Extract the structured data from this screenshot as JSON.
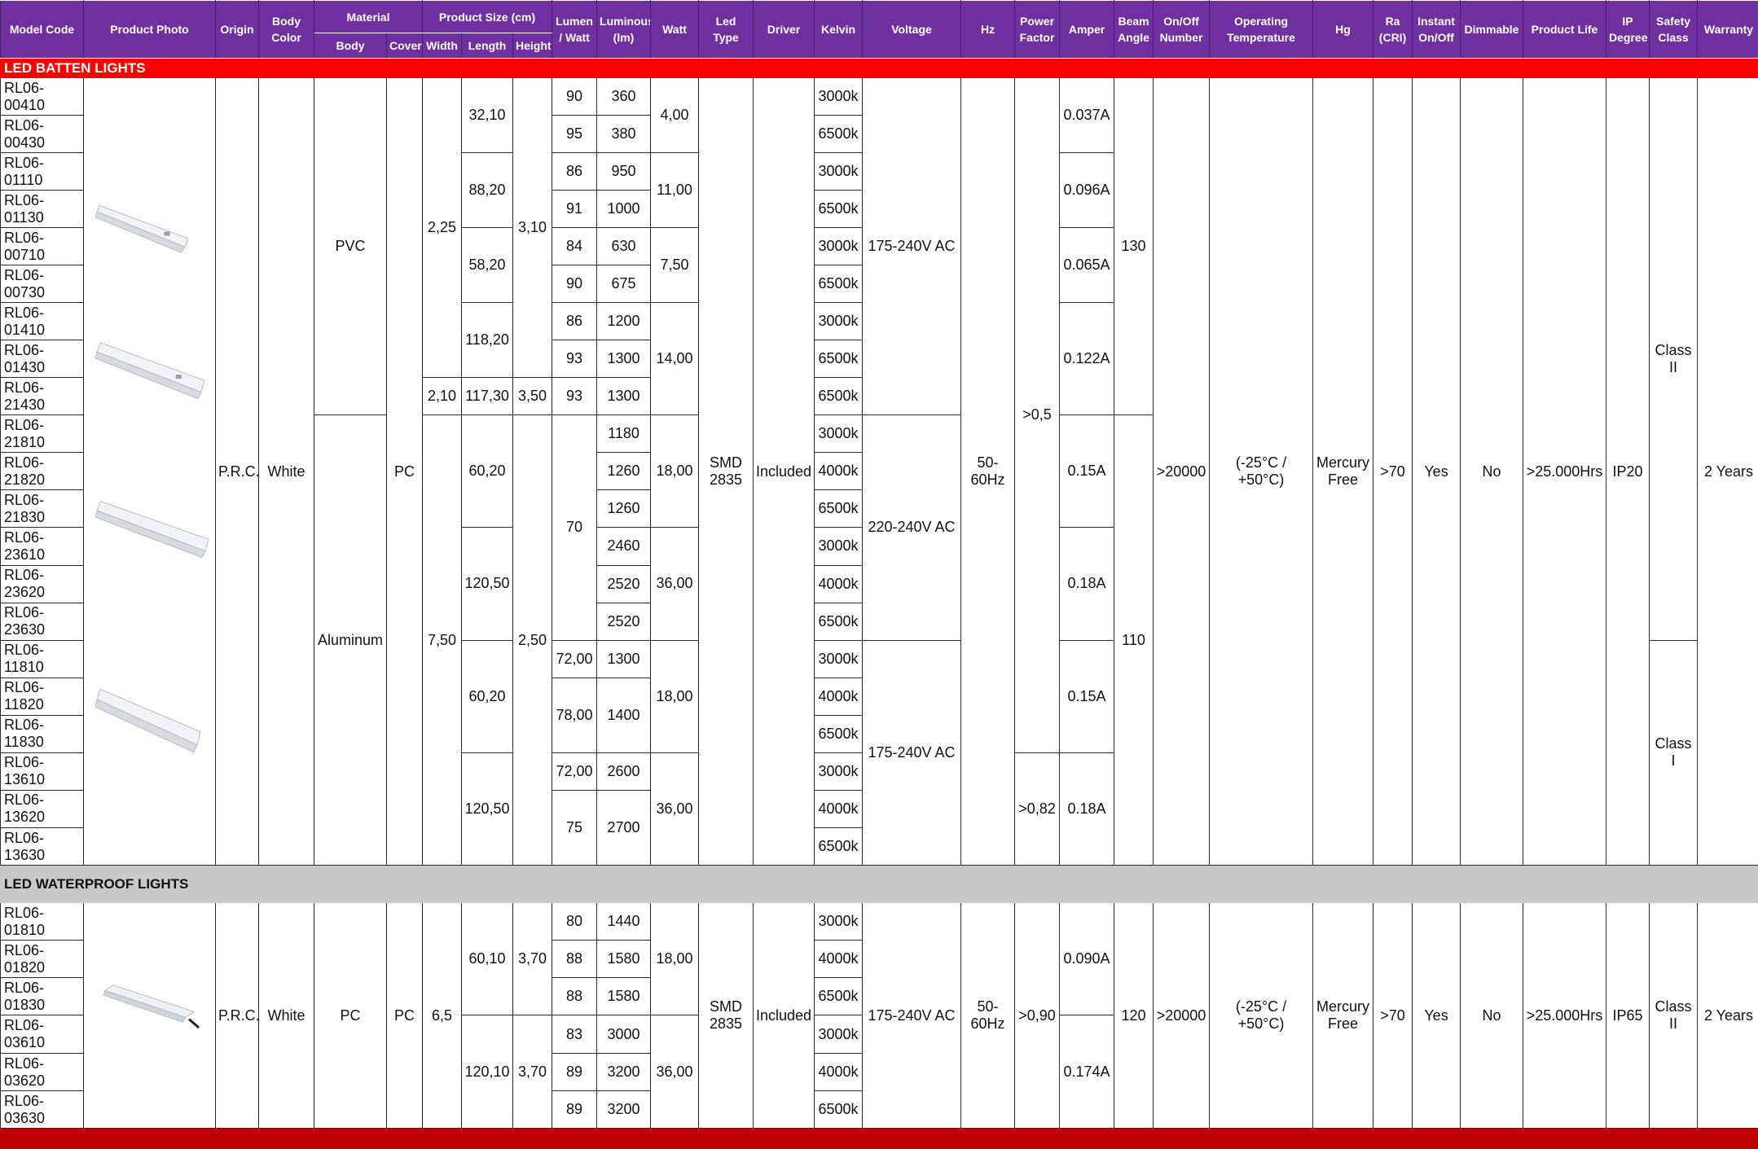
{
  "headers": {
    "model_code": "Model Code",
    "product_photo": "Product Photo",
    "origin": "Origin",
    "body_color": "Body Color",
    "material": "Material",
    "material_body": "Body",
    "material_cover": "Cover",
    "product_size": "Product Size (cm)",
    "width": "Width",
    "length": "Length",
    "height": "Height",
    "lumen_watt": "Lumen / Watt",
    "luminous": "Luminous (lm)",
    "watt": "Watt",
    "led_type": "Led Type",
    "driver": "Driver",
    "kelvin": "Kelvin",
    "voltage": "Voltage",
    "hz": "Hz",
    "power_factor": "Power Factor",
    "amper": "Amper",
    "beam_angle": "Beam Angle",
    "onoff": "On/Off Number",
    "op_temp": "Operating Temperature",
    "hg": "Hg",
    "ra": "Ra (CRI)",
    "instant": "Instant On/Off",
    "dimmable": "Dimmable",
    "life": "Product Life",
    "ip": "IP Degree",
    "safety": "Safety Class",
    "warranty": "Warranty"
  },
  "sections": {
    "batten": "LED BATTEN LIGHTS",
    "waterproof": "LED WATERPROOF LIGHTS"
  },
  "photo_icons": [
    "batten-light-icon",
    "batten-light-icon",
    "flat-batten-light-icon",
    "flat-batten-light-icon",
    "waterproof-light-icon"
  ],
  "batten": {
    "codes": [
      "RL06-00410",
      "RL06-00430",
      "RL06-01110",
      "RL06-01130",
      "RL06-00710",
      "RL06-00730",
      "RL06-01410",
      "RL06-01430",
      "RL06-21430",
      "RL06-21810",
      "RL06-21820",
      "RL06-21830",
      "RL06-23610",
      "RL06-23620",
      "RL06-23630",
      "RL06-11810",
      "RL06-11820",
      "RL06-11830",
      "RL06-13610",
      "RL06-13620",
      "RL06-13630"
    ],
    "kelvin": [
      "3000k",
      "6500k",
      "3000k",
      "6500k",
      "3000k",
      "6500k",
      "3000k",
      "6500k",
      "6500k",
      "3000k",
      "4000k",
      "6500k",
      "3000k",
      "4000k",
      "6500k",
      "3000k",
      "4000k",
      "6500k",
      "3000k",
      "4000k",
      "6500k"
    ],
    "luminous": [
      "360",
      "380",
      "950",
      "1000",
      "630",
      "675",
      "1200",
      "1300",
      "1300",
      "1180",
      "1260",
      "1260",
      "2460",
      "2520",
      "2520",
      "1300",
      "1400",
      "2600",
      "2700"
    ],
    "lumen_watt": [
      "90",
      "95",
      "86",
      "91",
      "84",
      "90",
      "86",
      "93",
      "93",
      "70",
      "72,00",
      "78,00",
      "72,00",
      "75"
    ],
    "length": [
      "32,10",
      "88,20",
      "58,20",
      "118,20",
      "117,30",
      "60,20",
      "120,50",
      "60,20",
      "120,50"
    ],
    "watt": [
      "4,00",
      "11,00",
      "7,50",
      "14,00",
      "18,00",
      "36,00",
      "18,00",
      "36,00"
    ],
    "amper": [
      "0.037A",
      "0.096A",
      "0.065A",
      "0.122A",
      "0.15A",
      "0.18A",
      "0.15A",
      "0.18A"
    ],
    "width": [
      "2,25",
      "2,10",
      "7,50"
    ],
    "height": [
      "3,10",
      "3,50",
      "2,50"
    ],
    "body": [
      "PVC",
      "Aluminum"
    ],
    "voltage": [
      "175-240V AC",
      "220-240V AC",
      "175-240V AC"
    ],
    "power_factor": [
      ">0,5",
      ">0,82"
    ],
    "beam_angle": [
      "130",
      "110"
    ],
    "safety": [
      "Class II",
      "Class I"
    ],
    "origin": "P.R.C.",
    "body_color": "White",
    "cover": "PC",
    "led_type": "SMD 2835",
    "driver": "Included",
    "hz": "50-60Hz",
    "onoff": ">20000",
    "op_temp": "(-25°C / +50°C)",
    "hg": "Mercury Free",
    "ra": ">70",
    "instant": "Yes",
    "dimmable": "No",
    "life": ">25.000Hrs",
    "ip": "IP20",
    "warranty": "2 Years"
  },
  "waterproof": {
    "codes": [
      "RL06-01810",
      "RL06-01820",
      "RL06-01830",
      "RL06-03610",
      "RL06-03620",
      "RL06-03630"
    ],
    "kelvin": [
      "3000k",
      "4000k",
      "6500k",
      "3000k",
      "4000k",
      "6500k"
    ],
    "lumen_watt": [
      "80",
      "88",
      "88",
      "83",
      "89",
      "89"
    ],
    "luminous": [
      "1440",
      "1580",
      "1580",
      "3000",
      "3200",
      "3200"
    ],
    "length": [
      "60,10",
      "120,10"
    ],
    "height": [
      "3,70",
      "3,70"
    ],
    "watt": [
      "18,00",
      "36,00"
    ],
    "amper": [
      "0.090A",
      "0.174A"
    ],
    "origin": "P.R.C.",
    "body_color": "White",
    "body": "PC",
    "cover": "PC",
    "width": "6,5",
    "led_type": "SMD 2835",
    "driver": "Included",
    "voltage": "175-240V AC",
    "hz": "50-60Hz",
    "power_factor": ">0,90",
    "beam_angle": "120",
    "onoff": ">20000",
    "op_temp": "(-25°C / +50°C)",
    "hg": "Mercury Free",
    "ra": ">70",
    "instant": "Yes",
    "dimmable": "No",
    "life": ">25.000Hrs",
    "ip": "IP65",
    "safety": "Class II",
    "warranty": "2 Years"
  }
}
